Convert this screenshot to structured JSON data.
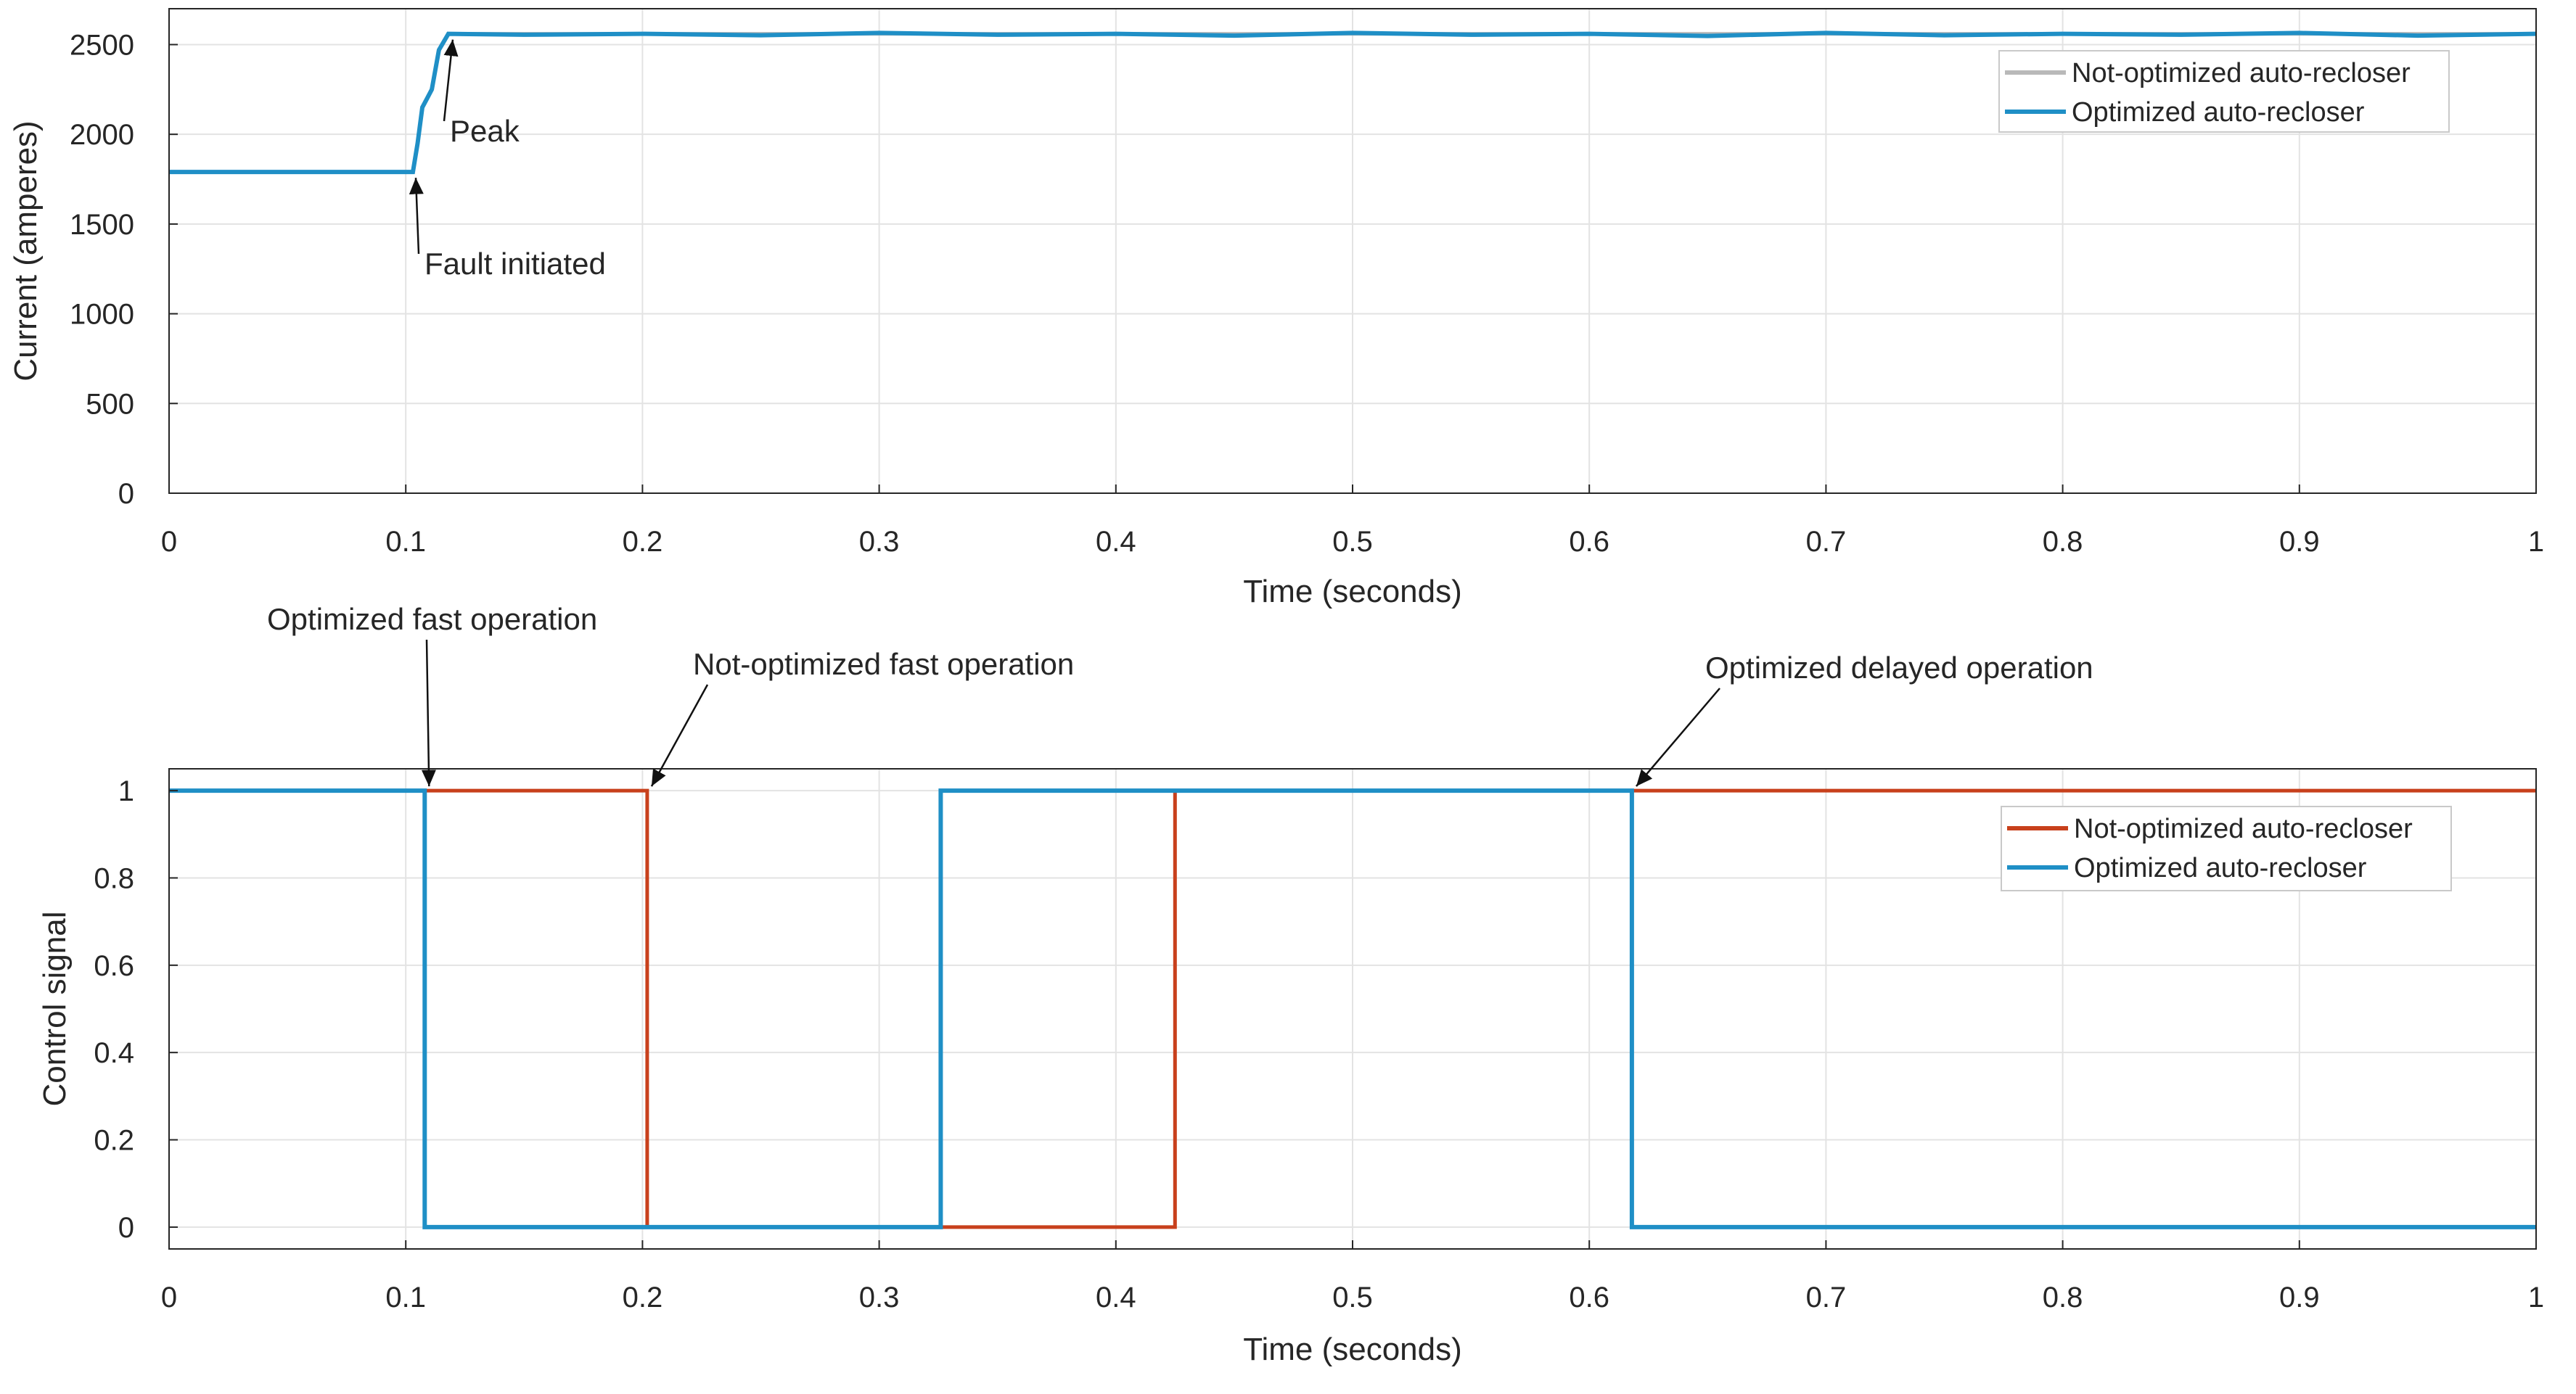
{
  "colors": {
    "not_optimized_top": "#b9b9b9",
    "optimized": "#1f8fc6",
    "not_optimized_bottom": "#c8401c",
    "grid": "#e3e3e3",
    "axis": "#262626"
  },
  "chart_data": [
    {
      "type": "line",
      "xlabel": "Time (seconds)",
      "ylabel": "Current (amperes)",
      "xlim": [
        0,
        1
      ],
      "ylim": [
        0,
        2700
      ],
      "xticks": [
        0,
        0.1,
        0.2,
        0.3,
        0.4,
        0.5,
        0.6,
        0.7,
        0.8,
        0.9,
        1
      ],
      "xtick_labels": [
        "0",
        "0.1",
        "0.2",
        "0.3",
        "0.4",
        "0.5",
        "0.6",
        "0.7",
        "0.8",
        "0.9",
        "1"
      ],
      "yticks": [
        0,
        500,
        1000,
        1500,
        2000,
        2500
      ],
      "ytick_labels": [
        "0",
        "500",
        "1000",
        "1500",
        "2000",
        "2500"
      ],
      "grid": true,
      "legend_position": "top-right",
      "series": [
        {
          "name": "Not-optimized auto-recloser",
          "color_key": "not_optimized_top",
          "x": [
            0,
            0.1,
            0.103,
            0.105,
            0.107,
            0.109,
            0.111,
            0.114,
            0.118,
            0.2,
            0.3,
            0.4,
            0.5,
            0.6,
            0.7,
            0.8,
            0.9,
            1
          ],
          "y": [
            1790,
            1790,
            1790,
            1950,
            2150,
            2200,
            2250,
            2470,
            2560,
            2560,
            2560,
            2560,
            2560,
            2560,
            2560,
            2560,
            2560,
            2560
          ]
        },
        {
          "name": "Optimized auto-recloser",
          "color_key": "optimized",
          "x": [
            0,
            0.1,
            0.103,
            0.105,
            0.107,
            0.109,
            0.111,
            0.114,
            0.118,
            0.15,
            0.2,
            0.25,
            0.3,
            0.35,
            0.4,
            0.45,
            0.5,
            0.55,
            0.6,
            0.65,
            0.7,
            0.75,
            0.8,
            0.85,
            0.9,
            0.95,
            1
          ],
          "y": [
            1790,
            1790,
            1790,
            1950,
            2150,
            2200,
            2250,
            2470,
            2560,
            2555,
            2560,
            2552,
            2565,
            2555,
            2560,
            2550,
            2565,
            2555,
            2560,
            2548,
            2565,
            2552,
            2560,
            2555,
            2565,
            2550,
            2560
          ]
        }
      ],
      "annotations": [
        {
          "text": "Peak",
          "x": 0.118,
          "y": 2560
        },
        {
          "text": "Fault initiated",
          "x": 0.103,
          "y": 1790
        }
      ]
    },
    {
      "type": "line",
      "xlabel": "Time (seconds)",
      "ylabel": "Control signal",
      "xlim": [
        0,
        1
      ],
      "ylim": [
        -0.05,
        1.05
      ],
      "xticks": [
        0,
        0.1,
        0.2,
        0.3,
        0.4,
        0.5,
        0.6,
        0.7,
        0.8,
        0.9,
        1
      ],
      "xtick_labels": [
        "0",
        "0.1",
        "0.2",
        "0.3",
        "0.4",
        "0.5",
        "0.6",
        "0.7",
        "0.8",
        "0.9",
        "1"
      ],
      "yticks": [
        0,
        0.2,
        0.4,
        0.6,
        0.8,
        1
      ],
      "ytick_labels": [
        "0",
        "0.2",
        "0.4",
        "0.6",
        "0.8",
        "1"
      ],
      "grid": true,
      "legend_position": "top-right",
      "series": [
        {
          "name": "Not-optimized auto-recloser",
          "color_key": "not_optimized_bottom",
          "x": [
            0,
            0.202,
            0.202,
            0.425,
            0.425,
            1
          ],
          "y": [
            1,
            1,
            0,
            0,
            1,
            1
          ]
        },
        {
          "name": "Optimized auto-recloser",
          "color_key": "optimized",
          "x": [
            0,
            0.108,
            0.108,
            0.3,
            0.3,
            0.3005,
            0.3005,
            0.3,
            0.326,
            0.326,
            0.618,
            0.618,
            1
          ],
          "y": [
            1,
            1,
            0,
            0,
            0,
            0,
            0,
            0,
            0,
            1,
            1,
            0,
            0
          ]
        }
      ],
      "annotations": [
        {
          "text": "Optimized fast operation",
          "x": 0.108,
          "y": 1
        },
        {
          "text": "Not-optimized fast operation",
          "x": 0.202,
          "y": 1
        },
        {
          "text": "Optimized delayed operation",
          "x": 0.618,
          "y": 1
        }
      ]
    }
  ]
}
